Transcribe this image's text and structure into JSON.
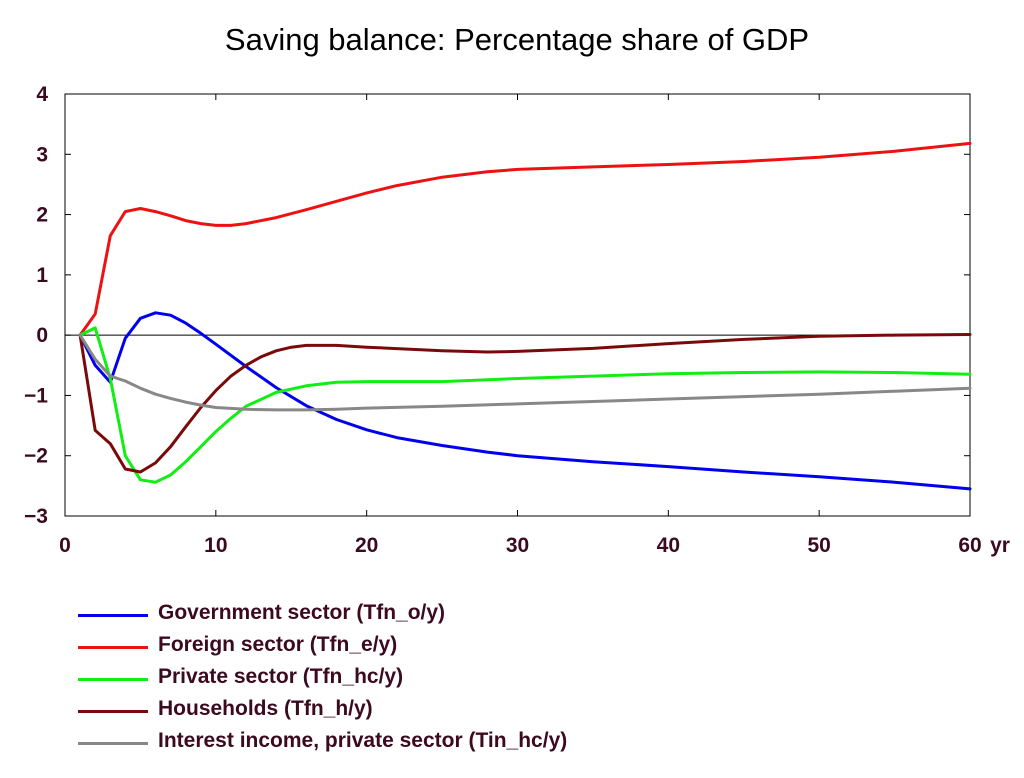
{
  "chart_data": {
    "type": "line",
    "title": "Saving balance: Percentage share of GDP",
    "xlabel": "",
    "ylabel": "",
    "x_unit_label": "yr",
    "xlim": [
      0,
      60
    ],
    "ylim": [
      -3,
      4
    ],
    "x_ticks": [
      0,
      10,
      20,
      30,
      40,
      50,
      60
    ],
    "y_ticks": [
      -3,
      -2,
      -1,
      0,
      1,
      2,
      3,
      4
    ],
    "grid": false,
    "zero_line": true,
    "legend_position": "bottom",
    "series": [
      {
        "name": "Government sector (Tfn_o/y)",
        "color": "#0000ee",
        "points": [
          [
            1,
            0
          ],
          [
            2,
            -0.5
          ],
          [
            3,
            -0.78
          ],
          [
            4,
            -0.05
          ],
          [
            5,
            0.28
          ],
          [
            6,
            0.37
          ],
          [
            7,
            0.33
          ],
          [
            8,
            0.2
          ],
          [
            9,
            0.03
          ],
          [
            10,
            -0.15
          ],
          [
            12,
            -0.52
          ],
          [
            14,
            -0.87
          ],
          [
            16,
            -1.17
          ],
          [
            18,
            -1.4
          ],
          [
            20,
            -1.57
          ],
          [
            22,
            -1.7
          ],
          [
            25,
            -1.83
          ],
          [
            28,
            -1.94
          ],
          [
            30,
            -2.0
          ],
          [
            35,
            -2.1
          ],
          [
            40,
            -2.18
          ],
          [
            45,
            -2.27
          ],
          [
            50,
            -2.35
          ],
          [
            55,
            -2.44
          ],
          [
            60,
            -2.55
          ]
        ]
      },
      {
        "name": "Foreign sector (Tfn_e/y)",
        "color": "#ee1111",
        "points": [
          [
            1,
            0
          ],
          [
            2,
            0.35
          ],
          [
            3,
            1.65
          ],
          [
            4,
            2.05
          ],
          [
            5,
            2.1
          ],
          [
            6,
            2.05
          ],
          [
            7,
            1.98
          ],
          [
            8,
            1.9
          ],
          [
            9,
            1.85
          ],
          [
            10,
            1.82
          ],
          [
            11,
            1.82
          ],
          [
            12,
            1.85
          ],
          [
            14,
            1.95
          ],
          [
            16,
            2.08
          ],
          [
            18,
            2.22
          ],
          [
            20,
            2.36
          ],
          [
            22,
            2.48
          ],
          [
            25,
            2.62
          ],
          [
            28,
            2.71
          ],
          [
            30,
            2.75
          ],
          [
            35,
            2.79
          ],
          [
            40,
            2.83
          ],
          [
            45,
            2.88
          ],
          [
            50,
            2.95
          ],
          [
            55,
            3.05
          ],
          [
            60,
            3.18
          ]
        ]
      },
      {
        "name": "Private sector (Tfn_hc/y)",
        "color": "#11ee11",
        "points": [
          [
            1,
            0
          ],
          [
            2,
            0.12
          ],
          [
            3,
            -0.72
          ],
          [
            4,
            -2.0
          ],
          [
            5,
            -2.4
          ],
          [
            6,
            -2.44
          ],
          [
            7,
            -2.32
          ],
          [
            8,
            -2.1
          ],
          [
            9,
            -1.85
          ],
          [
            10,
            -1.6
          ],
          [
            11,
            -1.38
          ],
          [
            12,
            -1.18
          ],
          [
            14,
            -0.95
          ],
          [
            16,
            -0.84
          ],
          [
            18,
            -0.78
          ],
          [
            20,
            -0.77
          ],
          [
            25,
            -0.77
          ],
          [
            30,
            -0.72
          ],
          [
            35,
            -0.68
          ],
          [
            40,
            -0.64
          ],
          [
            45,
            -0.62
          ],
          [
            50,
            -0.61
          ],
          [
            55,
            -0.62
          ],
          [
            60,
            -0.65
          ]
        ]
      },
      {
        "name": "Households (Tfn_h/y)",
        "color": "#7a0a0a",
        "points": [
          [
            1,
            0
          ],
          [
            2,
            -1.58
          ],
          [
            3,
            -1.8
          ],
          [
            4,
            -2.22
          ],
          [
            5,
            -2.27
          ],
          [
            6,
            -2.12
          ],
          [
            7,
            -1.85
          ],
          [
            8,
            -1.52
          ],
          [
            9,
            -1.2
          ],
          [
            10,
            -0.92
          ],
          [
            11,
            -0.68
          ],
          [
            12,
            -0.5
          ],
          [
            13,
            -0.36
          ],
          [
            14,
            -0.26
          ],
          [
            15,
            -0.2
          ],
          [
            16,
            -0.17
          ],
          [
            18,
            -0.17
          ],
          [
            20,
            -0.2
          ],
          [
            25,
            -0.26
          ],
          [
            28,
            -0.28
          ],
          [
            30,
            -0.27
          ],
          [
            35,
            -0.22
          ],
          [
            40,
            -0.14
          ],
          [
            45,
            -0.07
          ],
          [
            50,
            -0.02
          ],
          [
            55,
            0.0
          ],
          [
            60,
            0.01
          ]
        ]
      },
      {
        "name": "Interest income, private sector (Tin_hc/y)",
        "color": "#888888",
        "points": [
          [
            1,
            0
          ],
          [
            2,
            -0.4
          ],
          [
            3,
            -0.68
          ],
          [
            4,
            -0.76
          ],
          [
            5,
            -0.88
          ],
          [
            6,
            -0.98
          ],
          [
            7,
            -1.05
          ],
          [
            8,
            -1.11
          ],
          [
            9,
            -1.16
          ],
          [
            10,
            -1.2
          ],
          [
            12,
            -1.23
          ],
          [
            14,
            -1.24
          ],
          [
            16,
            -1.24
          ],
          [
            18,
            -1.23
          ],
          [
            20,
            -1.21
          ],
          [
            25,
            -1.18
          ],
          [
            30,
            -1.14
          ],
          [
            35,
            -1.1
          ],
          [
            40,
            -1.06
          ],
          [
            45,
            -1.02
          ],
          [
            50,
            -0.98
          ],
          [
            55,
            -0.93
          ],
          [
            60,
            -0.88
          ]
        ]
      }
    ]
  }
}
